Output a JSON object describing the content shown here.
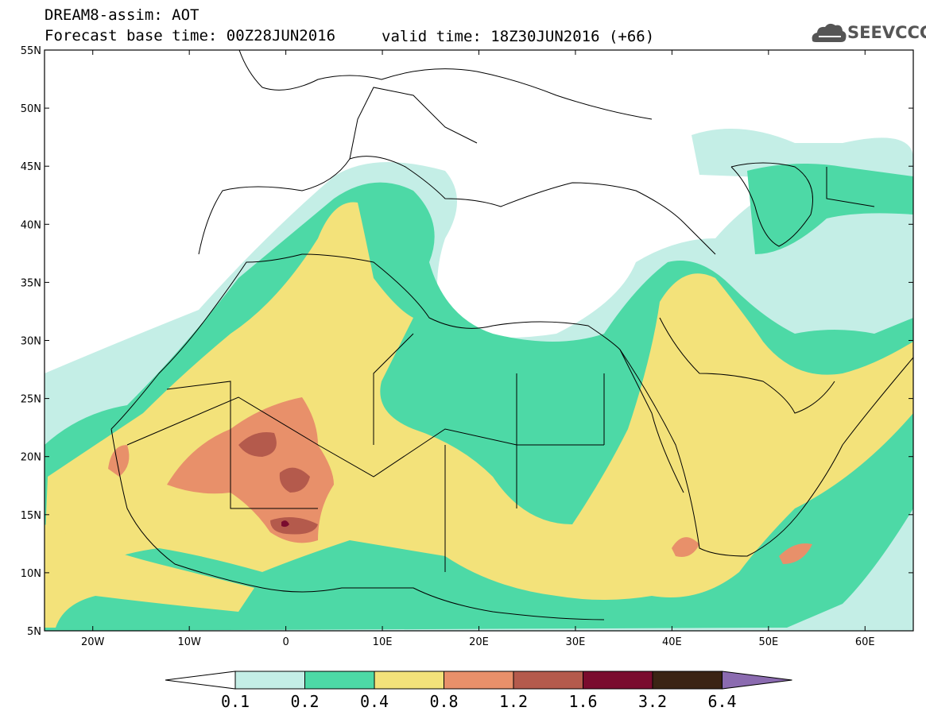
{
  "header": {
    "title": "DREAM8-assim: AOT",
    "base_time": "Forecast base time: 00Z28JUN2016",
    "valid_time": "valid time: 18Z30JUN2016 (+66)",
    "logo": "SEEVCCC"
  },
  "map": {
    "lon_range": [
      -25,
      65
    ],
    "lat_range": [
      5,
      55
    ],
    "lat_labels": [
      "5N",
      "10N",
      "15N",
      "20N",
      "25N",
      "30N",
      "35N",
      "40N",
      "45N",
      "50N",
      "55N"
    ],
    "lon_labels": [
      "20W",
      "10W",
      "0",
      "10E",
      "20E",
      "30E",
      "40E",
      "50E",
      "60E"
    ]
  },
  "colorbar": {
    "levels": [
      "0.1",
      "0.2",
      "0.4",
      "0.8",
      "1.2",
      "1.6",
      "3.2",
      "6.4"
    ],
    "colors": [
      "#ffffff",
      "#c4eee6",
      "#4dd9a6",
      "#f3e27a",
      "#e8906a",
      "#b45a4c",
      "#7a0c2e",
      "#3b2414",
      "#8b6bb0"
    ]
  }
}
